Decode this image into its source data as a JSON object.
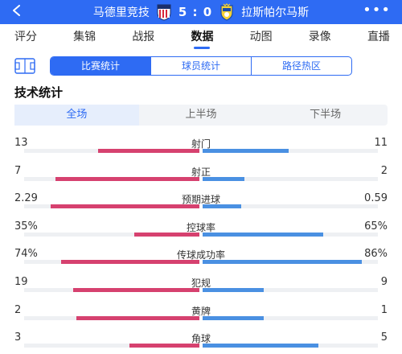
{
  "header": {
    "home_team": "马德里竞技",
    "score": "5 : 0",
    "away_team": "拉斯帕尔马斯",
    "more": "•••",
    "colors": {
      "bar_bg": "#2e6bf3"
    }
  },
  "nav": {
    "tabs": [
      {
        "label": "评分"
      },
      {
        "label": "集锦"
      },
      {
        "label": "战报"
      },
      {
        "label": "数据"
      },
      {
        "label": "动图"
      },
      {
        "label": "录像"
      },
      {
        "label": "直播"
      }
    ],
    "active_index": 3
  },
  "stat_tabs": {
    "items": [
      {
        "label": "比赛统计"
      },
      {
        "label": "球员统计"
      },
      {
        "label": "路径热区"
      }
    ],
    "active_index": 0
  },
  "section_title": "技术统计",
  "periods": {
    "items": [
      {
        "label": "全场"
      },
      {
        "label": "上半场"
      },
      {
        "label": "下半场"
      }
    ],
    "active_index": 0
  },
  "stats": [
    {
      "name": "射门",
      "home": "13",
      "away": "11",
      "home_ratio": 0.58,
      "away_ratio": 0.49
    },
    {
      "name": "射正",
      "home": "7",
      "away": "2",
      "home_ratio": 0.82,
      "away_ratio": 0.24
    },
    {
      "name": "预期进球",
      "home": "2.29",
      "away": "0.59",
      "home_ratio": 0.85,
      "away_ratio": 0.22
    },
    {
      "name": "控球率",
      "home": "35%",
      "away": "65%",
      "home_ratio": 0.37,
      "away_ratio": 0.69
    },
    {
      "name": "传球成功率",
      "home": "74%",
      "away": "86%",
      "home_ratio": 0.79,
      "away_ratio": 0.91
    },
    {
      "name": "犯规",
      "home": "19",
      "away": "9",
      "home_ratio": 0.72,
      "away_ratio": 0.35
    },
    {
      "name": "黄牌",
      "home": "2",
      "away": "1",
      "home_ratio": 0.7,
      "away_ratio": 0.35
    },
    {
      "name": "角球",
      "home": "3",
      "away": "5",
      "home_ratio": 0.4,
      "away_ratio": 0.66
    }
  ],
  "colors": {
    "accent": "#2e6bf3",
    "home_bar": "#d6416f",
    "away_bar": "#4a90e2"
  },
  "icons": {
    "back": "back-arrow-icon",
    "home_crest": "atletico-madrid-crest-icon",
    "away_crest": "las-palmas-crest-icon",
    "more": "more-dots-icon",
    "stats": "stats-field-icon"
  }
}
